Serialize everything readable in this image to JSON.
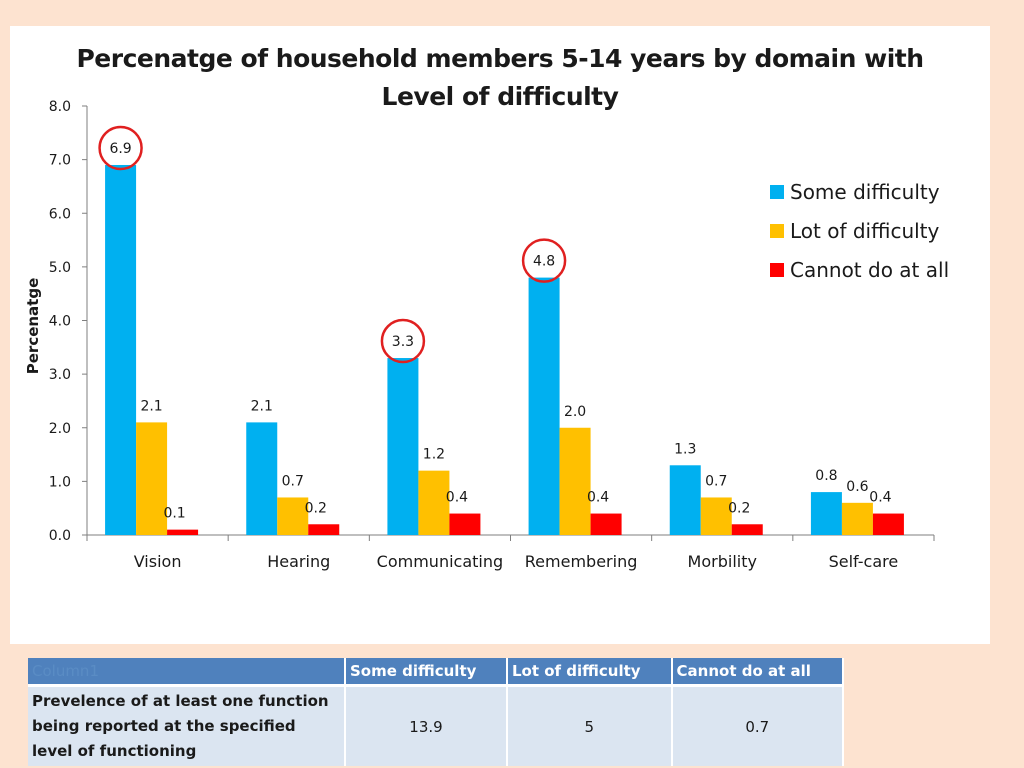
{
  "chart_data": {
    "type": "bar",
    "title_lines": [
      "Percenatge of household members 5-14 years by domain with",
      "Level of difficulty"
    ],
    "xlabel": "",
    "ylabel": "Percenatge",
    "ylim": [
      0,
      8
    ],
    "yticks": [
      "0.0",
      "1.0",
      "2.0",
      "3.0",
      "4.0",
      "5.0",
      "6.0",
      "7.0",
      "8.0"
    ],
    "categories": [
      "Vision",
      "Hearing",
      "Communicating",
      "Remembering",
      "Morbility",
      "Self-care"
    ],
    "series": [
      {
        "name": "Some difficulty",
        "color": "#00b0f0",
        "values": [
          6.9,
          2.1,
          3.3,
          4.8,
          1.3,
          0.8
        ],
        "labels": [
          "6.9",
          "2.1",
          "3.3",
          "4.8",
          "1.3",
          "0.8"
        ]
      },
      {
        "name": "Lot of difficulty",
        "color": "#ffc000",
        "values": [
          2.1,
          0.7,
          1.2,
          2.0,
          0.7,
          0.6
        ],
        "labels": [
          "2.1",
          "0.7",
          "1.2",
          "2.0",
          "0.7",
          "0.6"
        ]
      },
      {
        "name": "Cannot do at all",
        "color": "#ff0000",
        "values": [
          0.1,
          0.2,
          0.4,
          0.4,
          0.2,
          0.4
        ],
        "labels": [
          "0.1",
          "0.2",
          "0.4",
          "0.4",
          "0.2",
          "0.4"
        ]
      }
    ],
    "highlighted": [
      "Vision",
      "Communicating",
      "Remembering"
    ],
    "highlight_color": "#e02020",
    "legend_position": "right",
    "grid": false
  },
  "summary_table": {
    "corner": "Column1",
    "headers": [
      "Some difficulty",
      "Lot of difficulty",
      "Cannot do at all"
    ],
    "row_label": "Prevelence of at least one function being reported at the specified level of functioning",
    "values": [
      "13.9",
      "5",
      "0.7"
    ]
  }
}
